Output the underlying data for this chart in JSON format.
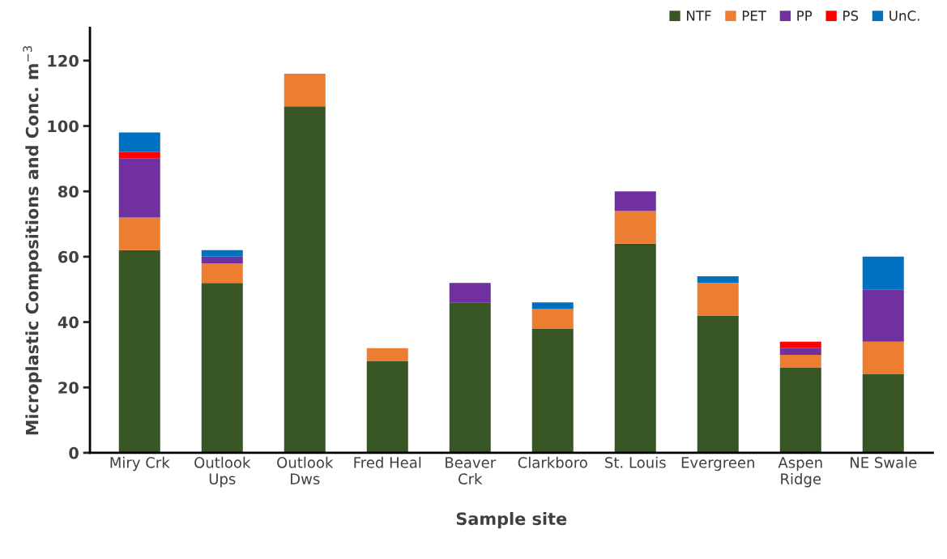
{
  "chart_data": {
    "type": "bar",
    "stacked": true,
    "xlabel": "Sample site",
    "ylabel": "Microplastic Compositions and Conc. m$^{−3}$",
    "categories": [
      "Miry Crk",
      "Outlook\nUps",
      "Outlook\nDws",
      "Fred Heal",
      "Beaver\nCrk",
      "Clarkboro",
      "St. Louis",
      "Evergreen",
      "Aspen\nRidge",
      "NE Swale"
    ],
    "series": [
      {
        "name": "NTF",
        "color": "#375623",
        "values": [
          62,
          52,
          106,
          28,
          46,
          38,
          64,
          42,
          26,
          24
        ]
      },
      {
        "name": "PET",
        "color": "#ed7d31",
        "values": [
          10,
          6,
          10,
          4,
          null,
          6,
          10,
          10,
          4,
          10
        ]
      },
      {
        "name": "PP",
        "color": "#7030a0",
        "values": [
          18,
          2,
          null,
          null,
          6,
          null,
          6,
          null,
          2,
          16
        ]
      },
      {
        "name": "PS",
        "color": "#ff0000",
        "values": [
          2,
          null,
          null,
          null,
          null,
          null,
          null,
          null,
          2,
          null
        ]
      },
      {
        "name": "UnC.",
        "color": "#0070c0",
        "values": [
          6,
          2,
          null,
          null,
          null,
          2,
          null,
          2,
          null,
          10
        ]
      }
    ],
    "ylim": [
      0,
      130
    ],
    "yticks": [
      0,
      20,
      40,
      60,
      80,
      100,
      120
    ],
    "grid": false,
    "legend": "top right"
  }
}
